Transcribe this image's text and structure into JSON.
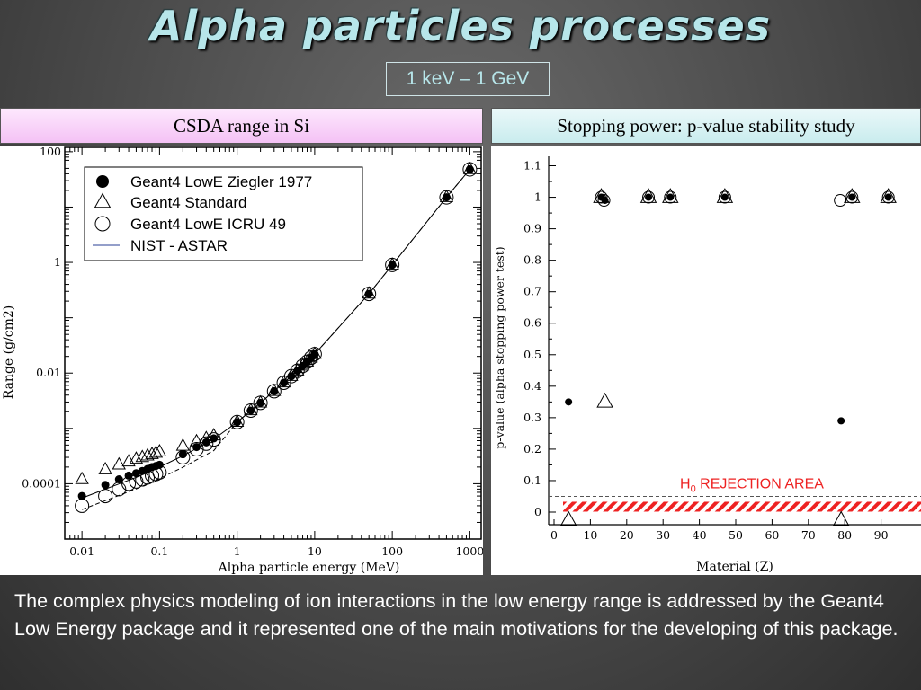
{
  "title": "Alpha particles processes",
  "subtitle": "1 keV – 1 GeV",
  "left_panel": {
    "header": "CSDA range in Si"
  },
  "right_panel": {
    "header": "Stopping power: p-value stability study"
  },
  "caption": "The complex physics modeling of ion interactions in the low energy range is addressed by the  Geant4 Low Energy package and it represented one of the main motivations for the developing of this package.",
  "chart_data": [
    {
      "type": "scatter",
      "xlabel": "Alpha particle energy (MeV)",
      "ylabel": "Range (g/cm2)",
      "x_scale": "log",
      "y_scale": "log",
      "xlim": [
        0.006,
        1400
      ],
      "ylim": [
        1e-05,
        120
      ],
      "x_ticks": [
        0.01,
        0.1,
        1,
        10,
        100,
        1000
      ],
      "x_tick_labels": [
        "0.01",
        "0.1",
        "1",
        "10",
        "100",
        "1000"
      ],
      "y_ticks": [
        0.0001,
        0.01,
        1,
        100
      ],
      "y_tick_labels": [
        "0.0001",
        "0.01",
        "1",
        "100"
      ],
      "legend_position": "top-left",
      "series": [
        {
          "name": "Geant4 LowE Ziegler 1977",
          "marker": "filled-circle",
          "x": [
            0.01,
            0.02,
            0.03,
            0.04,
            0.05,
            0.06,
            0.07,
            0.08,
            0.09,
            0.1,
            0.2,
            0.3,
            0.4,
            0.5,
            1,
            1.5,
            2,
            3,
            4,
            5,
            6,
            7,
            8,
            9,
            10,
            50,
            100,
            500,
            1000
          ],
          "y": [
            6e-05,
            9.5e-05,
            0.00012,
            0.00014,
            0.000155,
            0.00017,
            0.000185,
            0.0002,
            0.00021,
            0.00022,
            0.00034,
            0.00046,
            0.00056,
            0.00066,
            0.0013,
            0.0021,
            0.0029,
            0.0047,
            0.0067,
            0.0088,
            0.011,
            0.0135,
            0.016,
            0.019,
            0.022,
            0.27,
            0.9,
            15,
            48
          ]
        },
        {
          "name": "Geant4 Standard",
          "marker": "open-triangle",
          "x": [
            0.01,
            0.02,
            0.03,
            0.04,
            0.05,
            0.06,
            0.07,
            0.08,
            0.09,
            0.1,
            0.2,
            0.3,
            0.4,
            0.5,
            1,
            1.5,
            2,
            3,
            4,
            5,
            6,
            7,
            8,
            9,
            10,
            50,
            100,
            500,
            1000
          ],
          "y": [
            0.00012,
            0.00018,
            0.00022,
            0.00025,
            0.00028,
            0.0003,
            0.00032,
            0.00034,
            0.00036,
            0.00038,
            0.00048,
            0.00058,
            0.00066,
            0.00074,
            0.0013,
            0.0021,
            0.0029,
            0.0047,
            0.0067,
            0.0088,
            0.011,
            0.0135,
            0.016,
            0.019,
            0.022,
            0.27,
            0.9,
            15,
            48
          ]
        },
        {
          "name": "Geant4 LowE ICRU 49",
          "marker": "open-circle",
          "x": [
            0.01,
            0.02,
            0.03,
            0.04,
            0.05,
            0.06,
            0.07,
            0.08,
            0.09,
            0.1,
            0.2,
            0.3,
            0.4,
            0.5,
            1,
            1.5,
            2,
            3,
            4,
            5,
            6,
            7,
            8,
            9,
            10,
            50,
            100,
            500,
            1000
          ],
          "y": [
            4e-05,
            6e-05,
            8e-05,
            0.0001,
            0.00011,
            0.00012,
            0.00013,
            0.00014,
            0.00015,
            0.00016,
            0.0003,
            0.00042,
            0.00053,
            0.00063,
            0.0013,
            0.0021,
            0.0029,
            0.0047,
            0.0067,
            0.0088,
            0.011,
            0.0135,
            0.016,
            0.019,
            0.022,
            0.27,
            0.9,
            15,
            48
          ]
        },
        {
          "name": "NIST - ASTAR",
          "marker": "line",
          "x": [
            0.01,
            0.02,
            0.05,
            0.1,
            0.2,
            0.5,
            1,
            2,
            5,
            10,
            50,
            100,
            500,
            1000
          ],
          "y": [
            5.5e-05,
            8e-05,
            0.00013,
            0.0002,
            0.00032,
            0.00064,
            0.0013,
            0.0029,
            0.0088,
            0.022,
            0.27,
            0.9,
            15,
            48
          ]
        }
      ]
    },
    {
      "type": "scatter",
      "xlabel": "Material (Z)",
      "ylabel": "p-value (alpha stopping power test)",
      "xlim": [
        0,
        100
      ],
      "ylim": [
        0,
        1.13
      ],
      "x_ticks": [
        0,
        10,
        20,
        30,
        40,
        50,
        60,
        70,
        80,
        90
      ],
      "x_tick_labels": [
        "0",
        "10",
        "20",
        "30",
        "40",
        "50",
        "60",
        "70",
        "80",
        "90"
      ],
      "y_ticks": [
        0,
        0.1,
        0.2,
        0.3,
        0.4,
        0.5,
        0.6,
        0.7,
        0.8,
        0.9,
        1,
        1.1
      ],
      "y_tick_labels": [
        "0",
        "0.1",
        "0.2",
        "0.3",
        "0.4",
        "0.5",
        "0.6",
        "0.7",
        "0.8",
        "0.9",
        "1",
        "1.1"
      ],
      "threshold": 0.05,
      "rejection_label": "H",
      "rejection_label_sub": "0",
      "rejection_label_rest": " REJECTION AREA",
      "rejection_color": "#ee2222",
      "series": [
        {
          "marker": "filled-circle",
          "x": [
            4,
            13,
            14,
            26,
            32,
            47,
            79,
            82,
            92
          ],
          "y": [
            0.35,
            1,
            0.99,
            1,
            1,
            1,
            0.29,
            1,
            1
          ]
        },
        {
          "marker": "open-triangle",
          "x": [
            4,
            13,
            14,
            26,
            32,
            47,
            79,
            82,
            92
          ],
          "y": [
            0,
            1,
            0.35,
            1,
            1,
            1,
            0,
            1,
            1
          ]
        },
        {
          "marker": "open-circle",
          "x": [
            13,
            14,
            26,
            32,
            47,
            79,
            82,
            92
          ],
          "y": [
            1,
            0.99,
            1,
            1,
            1,
            0.99,
            1,
            1
          ]
        }
      ]
    }
  ]
}
